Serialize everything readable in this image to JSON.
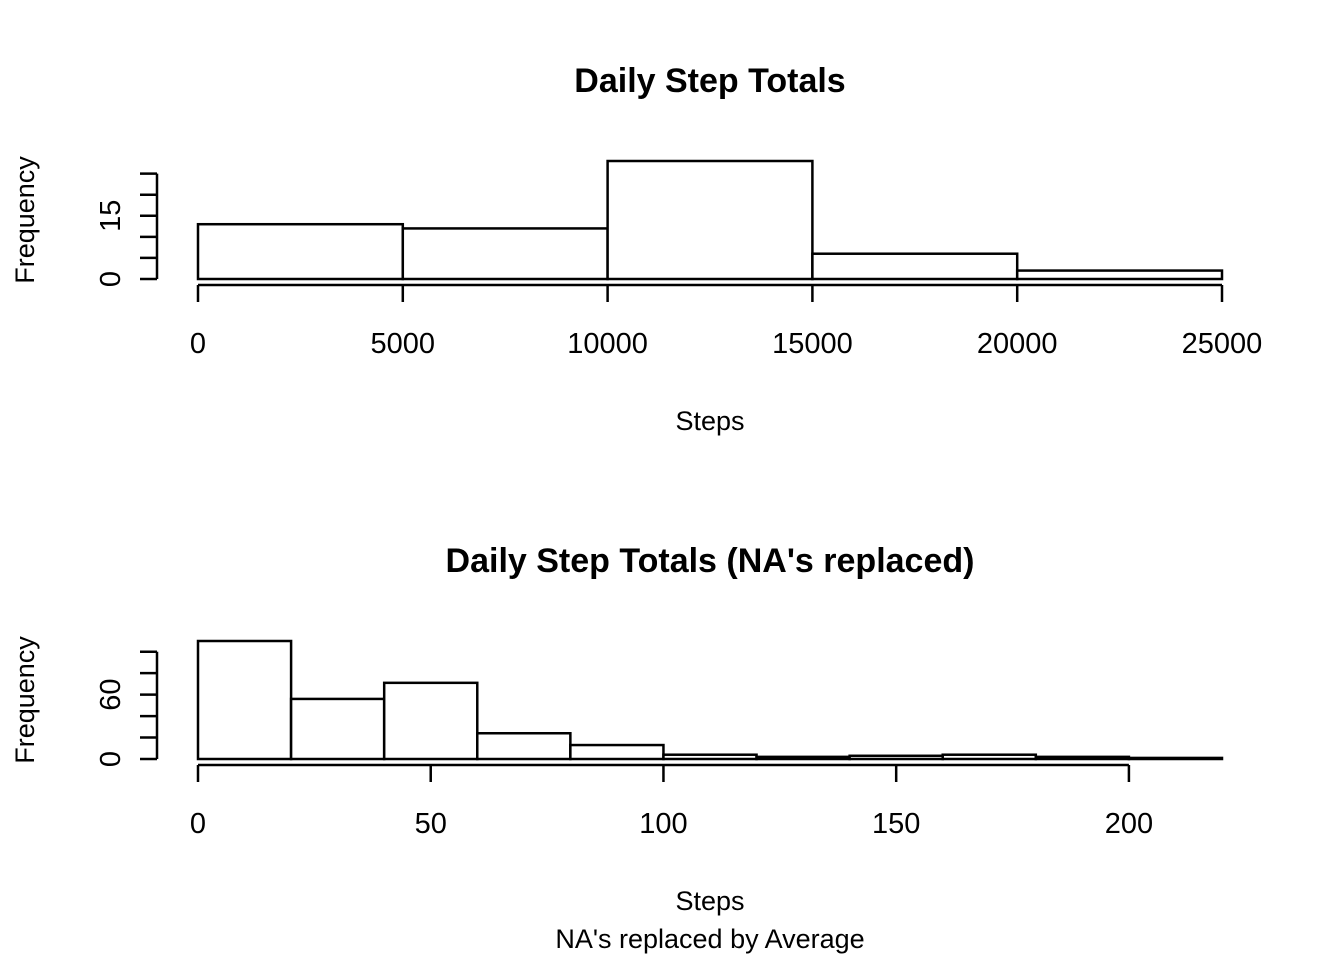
{
  "chart_data": [
    {
      "type": "bar",
      "title": "Daily Step Totals",
      "xlabel": "Steps",
      "ylabel": "Frequency",
      "subtitle": "",
      "breaks": [
        0,
        5000,
        10000,
        15000,
        20000,
        25000
      ],
      "values": [
        13,
        12,
        28,
        6,
        2
      ],
      "xlim": [
        0,
        25000
      ],
      "ylim": [
        0,
        28
      ],
      "x_ticks": [
        0,
        5000,
        10000,
        15000,
        20000,
        25000
      ],
      "y_ticks": [
        0,
        5,
        10,
        15,
        20,
        25
      ],
      "y_tick_labels": [
        "0",
        "",
        "",
        "15",
        "",
        ""
      ],
      "grid": false
    },
    {
      "type": "bar",
      "title": "Daily Step Totals (NA's replaced)",
      "xlabel": "Steps",
      "ylabel": "Frequency",
      "subtitle": "NA's replaced by Average",
      "breaks": [
        0,
        20,
        40,
        60,
        80,
        100,
        120,
        140,
        160,
        180,
        200,
        220
      ],
      "values": [
        110,
        56,
        71,
        24,
        13,
        4,
        2,
        3,
        4,
        2,
        1
      ],
      "xlim": [
        0,
        220
      ],
      "ylim": [
        0,
        110
      ],
      "x_ticks": [
        0,
        50,
        100,
        150,
        200
      ],
      "y_ticks": [
        0,
        20,
        40,
        60,
        80,
        100
      ],
      "y_tick_labels": [
        "0",
        "",
        "",
        "60",
        "",
        ""
      ],
      "grid": false
    }
  ]
}
